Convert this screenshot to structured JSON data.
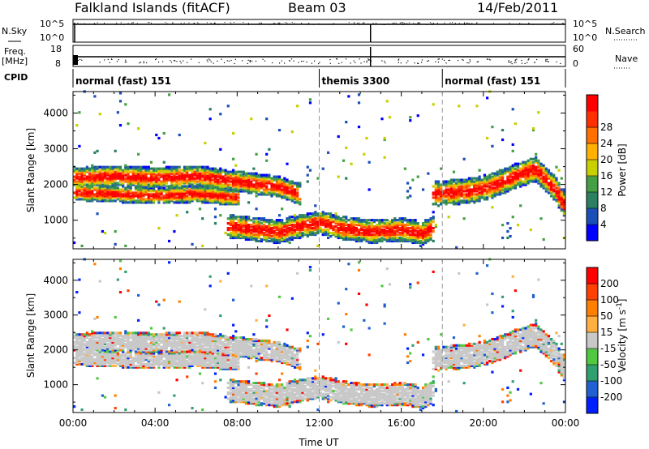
{
  "header": {
    "station": "Falkland Islands (fitACF)",
    "beam": "Beam 03",
    "date": "14/Feb/2011"
  },
  "side_labels": {
    "nsky": "N.Sky",
    "freq_line1": "Freq.",
    "freq_line2": "[MHz]",
    "cpid": "CPID",
    "nsearch": "N.Search",
    "nave": "Nave"
  },
  "strip_ticks": {
    "nsky_left": [
      "10^5",
      "10^0"
    ],
    "nsky_right": [
      "10^5",
      "10^0"
    ],
    "freq_left": [
      "18",
      "8"
    ],
    "nave_right": [
      "60",
      "0"
    ]
  },
  "cpid_segments": [
    {
      "label": "normal (fast) 151",
      "start_hr": 0
    },
    {
      "label": "themis 3300",
      "start_hr": 12
    },
    {
      "label": "normal (fast) 151",
      "start_hr": 18
    }
  ],
  "chart_data": [
    {
      "type": "heatmap",
      "panel": "power",
      "ylabel": "Slant Range [km]",
      "xlim": [
        0,
        24
      ],
      "ylim": [
        200,
        4600
      ],
      "yticks": [
        "1000",
        "2000",
        "3000",
        "4000"
      ],
      "colorbar_label": "Power [dB]",
      "colorbar_ticks": [
        "4",
        "8",
        "12",
        "16",
        "20",
        "24",
        "28"
      ],
      "colorbar_colors": [
        "#0000ff",
        "#1b4fb8",
        "#2a8060",
        "#45a045",
        "#c8d000",
        "#ffb000",
        "#ff7000",
        "#ff3000",
        "#ff0000"
      ],
      "bands": [
        {
          "t": [
            0,
            2,
            4,
            6,
            8,
            10,
            11
          ],
          "r": [
            2150,
            2200,
            2150,
            2200,
            2050,
            1900,
            1700
          ],
          "w": 250
        },
        {
          "t": [
            0,
            2,
            4,
            6,
            8
          ],
          "r": [
            1750,
            1700,
            1650,
            1700,
            1600
          ],
          "w": 200
        },
        {
          "t": [
            7.5,
            9,
            10,
            11,
            12,
            13,
            14.5,
            16,
            17,
            17.5
          ],
          "r": [
            800,
            700,
            650,
            800,
            900,
            750,
            650,
            700,
            600,
            750
          ],
          "w": 280
        },
        {
          "t": [
            17.5,
            18.5,
            19.5,
            20.5,
            21.5,
            22.5,
            23.5,
            24
          ],
          "r": [
            1700,
            1750,
            1800,
            1950,
            2200,
            2400,
            1800,
            1300
          ],
          "w": 300
        }
      ]
    },
    {
      "type": "heatmap",
      "panel": "velocity",
      "xlabel": "Time UT",
      "ylabel": "Slant Range [km]",
      "xlim": [
        0,
        24
      ],
      "ylim": [
        200,
        4600
      ],
      "xticks": [
        "00:00",
        "04:00",
        "08:00",
        "12:00",
        "16:00",
        "20:00",
        "00:00"
      ],
      "yticks": [
        "1000",
        "2000",
        "3000",
        "4000"
      ],
      "colorbar_label": "Velocity [m s^-1]",
      "colorbar_ticks": [
        "200",
        "100",
        "50",
        "15",
        "-15",
        "-50",
        "-100",
        "-200"
      ],
      "colorbar_colors": [
        "#0020ff",
        "#2060d0",
        "#30a070",
        "#50c840",
        "#c8c8c8",
        "#ffb040",
        "#ff8000",
        "#ff4000",
        "#ff0000"
      ]
    }
  ]
}
